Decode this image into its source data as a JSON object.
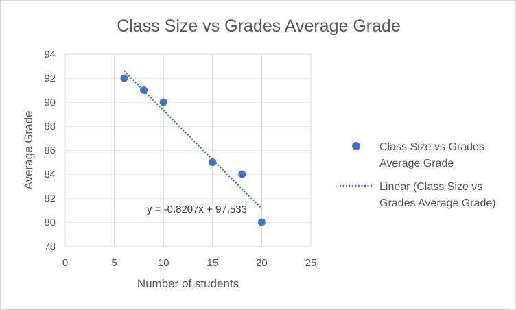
{
  "chart_data": {
    "type": "scatter",
    "title": "Class Size vs Grades Average Grade",
    "xlabel": "Number of students",
    "ylabel": "Average Grade",
    "xlim": [
      0,
      25
    ],
    "ylim": [
      78,
      94
    ],
    "xticks": [
      0,
      5,
      10,
      15,
      20,
      25
    ],
    "yticks": [
      78,
      80,
      82,
      84,
      86,
      88,
      90,
      92,
      94
    ],
    "grid": "vertical and horizontal",
    "series": [
      {
        "name": "Class Size vs Grades Average Grade",
        "color": "#4472c4",
        "points": [
          {
            "x": 6,
            "y": 92
          },
          {
            "x": 8,
            "y": 91
          },
          {
            "x": 10,
            "y": 90
          },
          {
            "x": 15,
            "y": 85
          },
          {
            "x": 18,
            "y": 84
          },
          {
            "x": 20,
            "y": 80
          }
        ]
      }
    ],
    "trendline": {
      "name": "Linear (Class Size vs Grades Average Grade)",
      "type": "linear",
      "slope": -0.8207,
      "intercept": 97.533,
      "x_range": [
        6,
        20
      ],
      "equation": "y = -0.8207x + 97.533",
      "style": "dotted",
      "color": "#4472c4"
    },
    "legend": {
      "position": "right",
      "entries": [
        {
          "line1": "Class Size vs Grades",
          "line2": "Average Grade"
        },
        {
          "line1": "Linear (Class Size vs",
          "line2": "Grades Average Grade)"
        }
      ]
    }
  }
}
